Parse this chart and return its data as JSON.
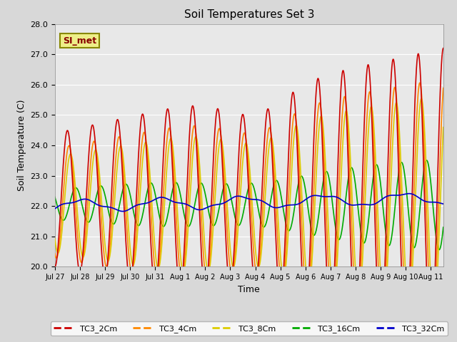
{
  "title": "Soil Temperatures Set 3",
  "xlabel": "Time",
  "ylabel": "Soil Temperature (C)",
  "ylim": [
    20.0,
    28.0
  ],
  "yticks": [
    20.0,
    21.0,
    22.0,
    23.0,
    24.0,
    25.0,
    26.0,
    27.0,
    28.0
  ],
  "fig_facecolor": "#d8d8d8",
  "plot_bg_color": "#e8e8e8",
  "grid_color": "#ffffff",
  "series": {
    "TC3_2Cm": {
      "color": "#cc0000",
      "lw": 1.2
    },
    "TC3_4Cm": {
      "color": "#ff8800",
      "lw": 1.2
    },
    "TC3_8Cm": {
      "color": "#ddcc00",
      "lw": 1.2
    },
    "TC3_16Cm": {
      "color": "#00aa00",
      "lw": 1.2
    },
    "TC3_32Cm": {
      "color": "#0000cc",
      "lw": 1.2
    }
  },
  "annotation_text": "SI_met",
  "annotation_color": "#880000",
  "annotation_bg": "#eeee88",
  "annotation_border": "#888800",
  "xtick_labels": [
    "Jul 27",
    "Jul 28",
    "Jul 29",
    "Jul 30",
    "Jul 31",
    "Aug 1",
    "Aug 2",
    "Aug 3",
    "Aug 4",
    "Aug 5",
    "Aug 6",
    "Aug 7",
    "Aug 8",
    "Aug 9",
    "Aug 10",
    "Aug 11"
  ],
  "xtick_positions": [
    0,
    1,
    2,
    3,
    4,
    5,
    6,
    7,
    8,
    9,
    10,
    11,
    12,
    13,
    14,
    15
  ]
}
